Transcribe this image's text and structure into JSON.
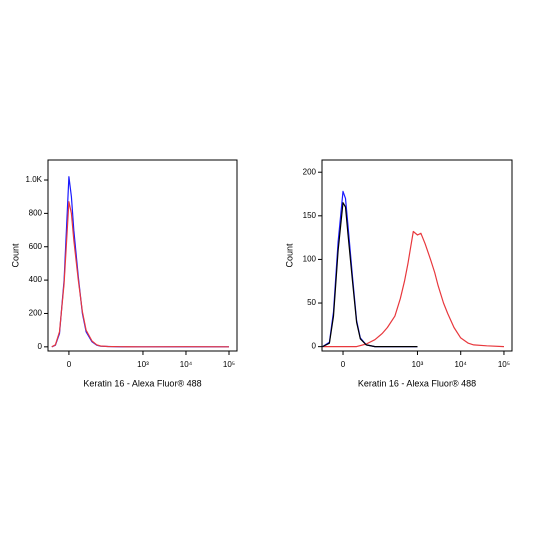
{
  "chart_data": [
    {
      "type": "line",
      "xlabel": "Keratin 16 - Alexa Fluor® 488",
      "ylabel": "Count",
      "xscale": "biexponential",
      "xlim": [
        -52,
        153500
      ],
      "xticks": [
        0,
        {
          "value": 1000,
          "label": "10³"
        },
        {
          "value": 10000,
          "label": "10⁴"
        },
        {
          "value": 100000,
          "label": "10⁵"
        }
      ],
      "ylim": [
        -25,
        1120
      ],
      "yticks": [
        0,
        200,
        400,
        600,
        800,
        {
          "value": 1000,
          "label": "1.0K"
        }
      ],
      "series": [
        {
          "color": "#1a1aff",
          "x": [
            -40,
            -30,
            -20,
            -10,
            0,
            5,
            10,
            20,
            30,
            40,
            60,
            80,
            100,
            150,
            300,
            1000,
            10000,
            100000
          ],
          "values": [
            0,
            10,
            80,
            400,
            1020,
            900,
            700,
            420,
            200,
            90,
            30,
            10,
            4,
            2,
            0,
            0,
            0,
            0
          ]
        },
        {
          "color": "#e8383d",
          "x": [
            -40,
            -30,
            -20,
            -10,
            0,
            5,
            10,
            20,
            30,
            40,
            60,
            80,
            100,
            150,
            300,
            1000,
            10000,
            100000
          ],
          "values": [
            0,
            12,
            90,
            380,
            870,
            800,
            640,
            400,
            210,
            100,
            35,
            12,
            5,
            2,
            1,
            0,
            1,
            0
          ]
        }
      ]
    },
    {
      "type": "line",
      "xlabel": "Keratin 16 - Alexa Fluor® 488",
      "ylabel": "Count",
      "xscale": "biexponential",
      "xlim": [
        -52,
        153500
      ],
      "xticks": [
        0,
        {
          "value": 1000,
          "label": "10³"
        },
        {
          "value": 10000,
          "label": "10⁴"
        },
        {
          "value": 100000,
          "label": "10⁵"
        }
      ],
      "ylim": [
        -5,
        214
      ],
      "yticks": [
        0,
        50,
        100,
        150,
        200
      ],
      "series": [
        {
          "color": "#e8383d",
          "x": [
            -50,
            30,
            60,
            100,
            150,
            200,
            300,
            400,
            500,
            600,
            700,
            800,
            1000,
            1200,
            1500,
            2000,
            2500,
            3000,
            4000,
            5000,
            7000,
            10000,
            15000,
            20000,
            40000,
            100000
          ],
          "values": [
            0,
            0,
            3,
            8,
            15,
            22,
            35,
            55,
            75,
            95,
            115,
            132,
            128,
            130,
            118,
            100,
            85,
            70,
            50,
            38,
            22,
            10,
            4,
            2,
            1,
            0
          ]
        },
        {
          "color": "#1a1aff",
          "x": [
            -50,
            -30,
            -20,
            -10,
            0,
            5,
            10,
            20,
            30,
            40,
            60,
            100,
            1000
          ],
          "values": [
            0,
            5,
            40,
            120,
            178,
            170,
            140,
            80,
            30,
            10,
            2,
            0,
            0
          ]
        },
        {
          "color": "#000000",
          "x": [
            -50,
            -30,
            -20,
            -10,
            0,
            5,
            10,
            20,
            30,
            40,
            60,
            100,
            1000
          ],
          "values": [
            0,
            4,
            35,
            110,
            165,
            160,
            130,
            75,
            28,
            9,
            2,
            0,
            0
          ]
        }
      ]
    }
  ]
}
